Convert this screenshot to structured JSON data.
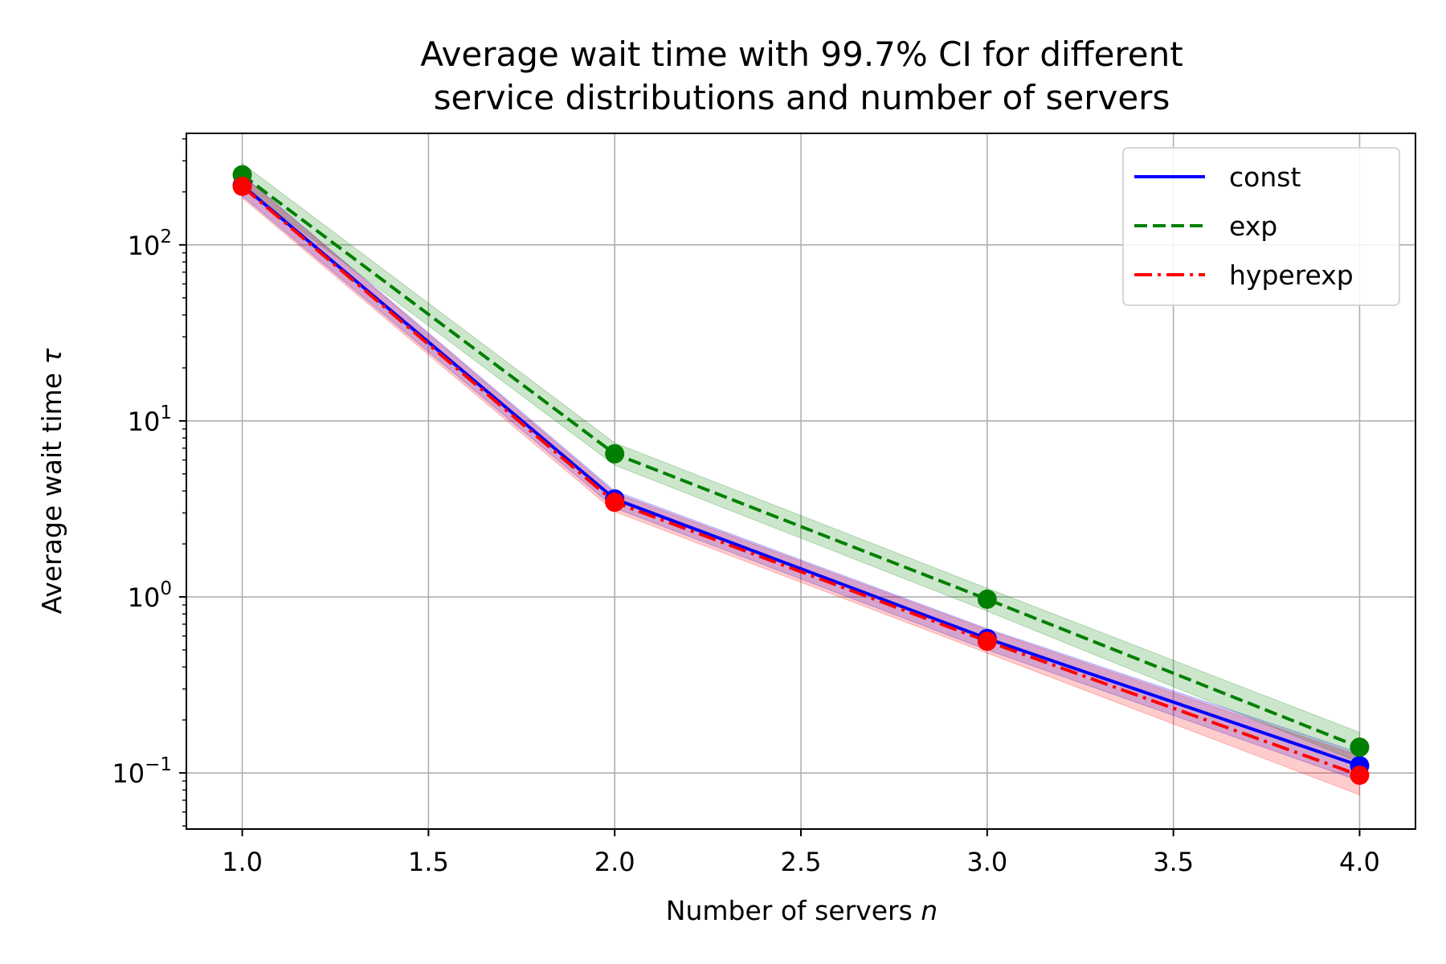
{
  "chart_data": {
    "type": "line",
    "title_lines": [
      "Average wait time with 99.7% CI for different",
      "service distributions and number of servers"
    ],
    "xlabel": "Number of servers",
    "xlabel_var": "n",
    "ylabel": "Average wait time",
    "ylabel_var": "τ",
    "y_scale": "log",
    "xlim": [
      0.85,
      4.15
    ],
    "ylim": [
      0.048,
      430
    ],
    "grid": true,
    "legend_position": "top-right",
    "x_ticks": [
      "1.0",
      "1.5",
      "2.0",
      "2.5",
      "3.0",
      "3.5",
      "4.0"
    ],
    "y_ticks": [
      {
        "value": 0.1,
        "base": "10",
        "exp": "−1"
      },
      {
        "value": 1,
        "base": "10",
        "exp": "0"
      },
      {
        "value": 10,
        "base": "10",
        "exp": "1"
      },
      {
        "value": 100,
        "base": "10",
        "exp": "2"
      }
    ],
    "x": [
      1,
      2,
      3,
      4
    ],
    "series": [
      {
        "name": "const",
        "color": "#0000ff",
        "dash": "solid",
        "values": [
          218,
          3.6,
          0.58,
          0.11
        ],
        "ci_low": [
          190,
          3.2,
          0.5,
          0.09
        ],
        "ci_high": [
          250,
          4.0,
          0.66,
          0.13
        ]
      },
      {
        "name": "exp",
        "color": "#008000",
        "dash": "dashed",
        "values": [
          250,
          6.5,
          0.97,
          0.14
        ],
        "ci_low": [
          215,
          5.6,
          0.83,
          0.115
        ],
        "ci_high": [
          290,
          7.5,
          1.12,
          0.17
        ]
      },
      {
        "name": "hyperexp",
        "color": "#ff0000",
        "dash": "dashdot",
        "values": [
          215,
          3.45,
          0.56,
          0.097
        ],
        "ci_low": [
          185,
          3.05,
          0.48,
          0.075
        ],
        "ci_high": [
          248,
          3.9,
          0.65,
          0.125
        ]
      }
    ]
  }
}
